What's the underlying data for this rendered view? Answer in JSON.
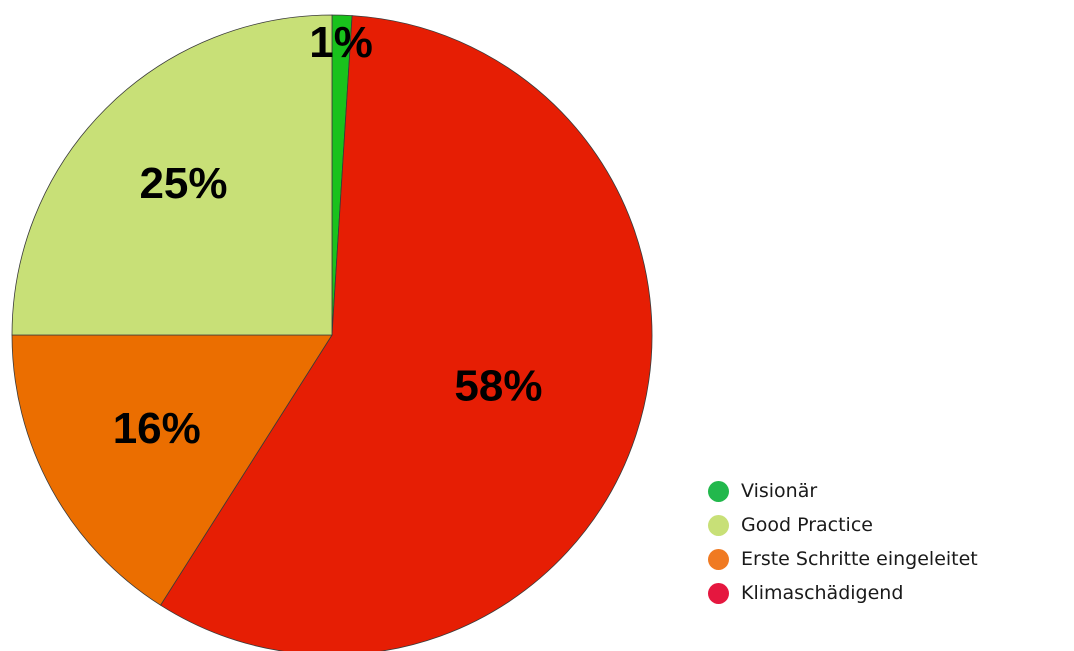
{
  "chart_data": {
    "type": "pie",
    "title": "",
    "slices": [
      {
        "name": "Visionär",
        "value": 1,
        "label": "1%",
        "color": "#19c21c",
        "legend_color": "#22b84c"
      },
      {
        "name": "Klimaschädigend",
        "value": 58,
        "label": "58%",
        "color": "#e61e04",
        "legend_color": "#e5173f"
      },
      {
        "name": "Erste Schritte eingeleitet",
        "value": 16,
        "label": "16%",
        "color": "#eb6e00",
        "legend_color": "#f07a22"
      },
      {
        "name": "Good Practice",
        "value": 25,
        "label": "25%",
        "color": "#c8e077",
        "legend_color": "#c8e077"
      }
    ],
    "legend": {
      "placement": "bottom-right",
      "items": [
        {
          "label": "Visionär",
          "color": "#22b84c"
        },
        {
          "label": "Good Practice",
          "color": "#c8e077"
        },
        {
          "label": "Erste Schritte eingeleitet",
          "color": "#f07a22"
        },
        {
          "label": "Klimaschädigend",
          "color": "#e5173f"
        }
      ]
    }
  }
}
